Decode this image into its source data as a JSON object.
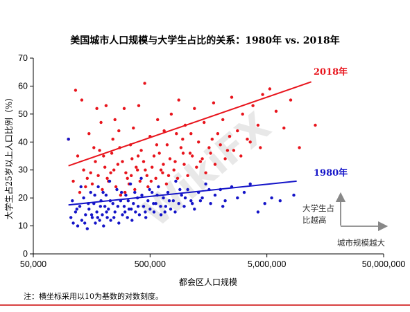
{
  "chart_data": {
    "type": "scatter",
    "title": "美国城市人口规模与大学生占比的关系：1980年 vs. 2018年",
    "xlabel": "都会区人口规模",
    "ylabel": "大学生占25岁以上人口比例（%）",
    "x_scale": "log",
    "xlim": [
      50000,
      50000000
    ],
    "ylim": [
      0,
      70
    ],
    "x_ticks": [
      50000,
      500000,
      5000000,
      50000000
    ],
    "x_tick_labels": [
      "50,000",
      "500,000",
      "5,000,000",
      "50,000,000"
    ],
    "y_ticks": [
      0,
      10,
      20,
      30,
      40,
      50,
      60,
      70
    ],
    "y_tick_labels": [
      "0",
      "10",
      "20",
      "30",
      "40",
      "50",
      "60",
      "70"
    ],
    "grid": false,
    "series": [
      {
        "name": "2018年",
        "color": "#e8141c",
        "trend": [
          [
            100000,
            31.5
          ],
          [
            12000000,
            61.5
          ]
        ],
        "points": [
          [
            100000,
            41
          ],
          [
            115000,
            58.5
          ],
          [
            130000,
            55
          ],
          [
            140000,
            24
          ],
          [
            150000,
            43
          ],
          [
            165000,
            38
          ],
          [
            175000,
            52
          ],
          [
            190000,
            47
          ],
          [
            200000,
            35
          ],
          [
            210000,
            53
          ],
          [
            230000,
            29
          ],
          [
            240000,
            41
          ],
          [
            250000,
            48
          ],
          [
            270000,
            44
          ],
          [
            290000,
            33
          ],
          [
            300000,
            52
          ],
          [
            320000,
            27
          ],
          [
            340000,
            39
          ],
          [
            360000,
            45
          ],
          [
            380000,
            31
          ],
          [
            400000,
            53
          ],
          [
            420000,
            37
          ],
          [
            450000,
            61
          ],
          [
            470000,
            28
          ],
          [
            500000,
            42
          ],
          [
            540000,
            35
          ],
          [
            580000,
            48
          ],
          [
            620000,
            30
          ],
          [
            660000,
            44
          ],
          [
            700000,
            39
          ],
          [
            760000,
            50
          ],
          [
            820000,
            33
          ],
          [
            880000,
            55
          ],
          [
            950000,
            41
          ],
          [
            1000000,
            46
          ],
          [
            1100000,
            36
          ],
          [
            1200000,
            52
          ],
          [
            1300000,
            40
          ],
          [
            1450000,
            47
          ],
          [
            1600000,
            38
          ],
          [
            1750000,
            54
          ],
          [
            1900000,
            43
          ],
          [
            2100000,
            48
          ],
          [
            2300000,
            37
          ],
          [
            2500000,
            56
          ],
          [
            2800000,
            44
          ],
          [
            3100000,
            50
          ],
          [
            3400000,
            41
          ],
          [
            3800000,
            53
          ],
          [
            4200000,
            46
          ],
          [
            4600000,
            57
          ],
          [
            5300000,
            59
          ],
          [
            6000000,
            51
          ],
          [
            7000000,
            45
          ],
          [
            8000000,
            55
          ],
          [
            9500000,
            38
          ],
          [
            13000000,
            46
          ],
          [
            110000,
            26
          ],
          [
            125000,
            22
          ],
          [
            135000,
            30
          ],
          [
            145000,
            27
          ],
          [
            160000,
            25
          ],
          [
            170000,
            33
          ],
          [
            180000,
            28
          ],
          [
            195000,
            23
          ],
          [
            205000,
            31
          ],
          [
            220000,
            26
          ],
          [
            235000,
            36
          ],
          [
            255000,
            24
          ],
          [
            265000,
            32
          ],
          [
            280000,
            21
          ],
          [
            310000,
            29
          ],
          [
            330000,
            25
          ],
          [
            350000,
            34
          ],
          [
            370000,
            23
          ],
          [
            390000,
            30
          ],
          [
            410000,
            26
          ],
          [
            440000,
            33
          ],
          [
            480000,
            24
          ],
          [
            520000,
            31
          ],
          [
            560000,
            27
          ],
          [
            600000,
            36
          ],
          [
            640000,
            29
          ],
          [
            690000,
            25
          ],
          [
            740000,
            34
          ],
          [
            800000,
            30
          ],
          [
            860000,
            27
          ],
          [
            920000,
            38
          ],
          [
            980000,
            32
          ],
          [
            1050000,
            28
          ],
          [
            1150000,
            35
          ],
          [
            1250000,
            31
          ],
          [
            1350000,
            33
          ],
          [
            1500000,
            29
          ],
          [
            1650000,
            36
          ],
          [
            1800000,
            32
          ],
          [
            2000000,
            39
          ],
          [
            2200000,
            34
          ],
          [
            2600000,
            37
          ],
          [
            3000000,
            35
          ],
          [
            3600000,
            40
          ],
          [
            4400000,
            38
          ],
          [
            120000,
            35
          ],
          [
            155000,
            29
          ],
          [
            185000,
            37
          ],
          [
            215000,
            27
          ],
          [
            245000,
            30
          ],
          [
            275000,
            38
          ],
          [
            305000,
            22
          ],
          [
            345000,
            28
          ],
          [
            395000,
            35
          ],
          [
            455000,
            30
          ],
          [
            510000,
            26
          ],
          [
            570000,
            39
          ],
          [
            650000,
            32
          ],
          [
            720000,
            28
          ],
          [
            840000,
            43
          ],
          [
            960000,
            36
          ],
          [
            1120000,
            43
          ],
          [
            1400000,
            34
          ],
          [
            1700000,
            41
          ],
          [
            2400000,
            42
          ]
        ]
      },
      {
        "name": "1980年",
        "color": "#1414c8",
        "trend": [
          [
            100000,
            17.5
          ],
          [
            9000000,
            26
          ]
        ],
        "points": [
          [
            100000,
            41
          ],
          [
            105000,
            13
          ],
          [
            110000,
            11
          ],
          [
            115000,
            15
          ],
          [
            120000,
            10
          ],
          [
            125000,
            17
          ],
          [
            130000,
            12
          ],
          [
            135000,
            20
          ],
          [
            140000,
            14
          ],
          [
            145000,
            9
          ],
          [
            150000,
            16
          ],
          [
            155000,
            22
          ],
          [
            160000,
            13
          ],
          [
            165000,
            18
          ],
          [
            170000,
            11
          ],
          [
            175000,
            15
          ],
          [
            180000,
            24
          ],
          [
            185000,
            12
          ],
          [
            190000,
            19
          ],
          [
            195000,
            14
          ],
          [
            200000,
            10
          ],
          [
            205000,
            17
          ],
          [
            210000,
            21
          ],
          [
            215000,
            13
          ],
          [
            220000,
            16
          ],
          [
            225000,
            26
          ],
          [
            230000,
            12
          ],
          [
            240000,
            18
          ],
          [
            250000,
            15
          ],
          [
            260000,
            23
          ],
          [
            270000,
            11
          ],
          [
            280000,
            19
          ],
          [
            290000,
            14
          ],
          [
            300000,
            17
          ],
          [
            310000,
            21
          ],
          [
            320000,
            13
          ],
          [
            330000,
            16
          ],
          [
            340000,
            25
          ],
          [
            350000,
            12
          ],
          [
            360000,
            18
          ],
          [
            375000,
            15
          ],
          [
            390000,
            20
          ],
          [
            405000,
            14
          ],
          [
            420000,
            27
          ],
          [
            440000,
            17
          ],
          [
            460000,
            13
          ],
          [
            480000,
            19
          ],
          [
            500000,
            16
          ],
          [
            520000,
            22
          ],
          [
            540000,
            15
          ],
          [
            560000,
            18
          ],
          [
            590000,
            24
          ],
          [
            620000,
            14
          ],
          [
            650000,
            20
          ],
          [
            680000,
            17
          ],
          [
            710000,
            22
          ],
          [
            750000,
            16
          ],
          [
            790000,
            19
          ],
          [
            830000,
            26
          ],
          [
            880000,
            18
          ],
          [
            930000,
            21
          ],
          [
            980000,
            17
          ],
          [
            1050000,
            23
          ],
          [
            1120000,
            19
          ],
          [
            1200000,
            16
          ],
          [
            1300000,
            22
          ],
          [
            1400000,
            20
          ],
          [
            1500000,
            25
          ],
          [
            1650000,
            18
          ],
          [
            1800000,
            21
          ],
          [
            2000000,
            23
          ],
          [
            2200000,
            19
          ],
          [
            2500000,
            24
          ],
          [
            2800000,
            20
          ],
          [
            3200000,
            22
          ],
          [
            3600000,
            25
          ],
          [
            4200000,
            15
          ],
          [
            4800000,
            18
          ],
          [
            5500000,
            20
          ],
          [
            6500000,
            19
          ],
          [
            8500000,
            21
          ],
          [
            108000,
            19
          ],
          [
            118000,
            16
          ],
          [
            128000,
            24
          ],
          [
            138000,
            11
          ],
          [
            148000,
            18
          ],
          [
            158000,
            14
          ],
          [
            168000,
            21
          ],
          [
            178000,
            13
          ],
          [
            188000,
            17
          ],
          [
            198000,
            22
          ],
          [
            212000,
            15
          ],
          [
            228000,
            19
          ],
          [
            245000,
            13
          ],
          [
            265000,
            17
          ],
          [
            285000,
            22
          ],
          [
            305000,
            15
          ],
          [
            325000,
            19
          ],
          [
            345000,
            16
          ],
          [
            370000,
            22
          ],
          [
            395000,
            17
          ],
          [
            425000,
            21
          ],
          [
            455000,
            15
          ],
          [
            495000,
            23
          ],
          [
            535000,
            18
          ],
          [
            575000,
            21
          ],
          [
            615000,
            17
          ],
          [
            670000,
            15
          ],
          [
            730000,
            19
          ],
          [
            820000,
            15
          ],
          [
            900000,
            23
          ],
          [
            1000000,
            20
          ],
          [
            1150000,
            18
          ],
          [
            1350000,
            19
          ],
          [
            1600000,
            23
          ],
          [
            2100000,
            17
          ]
        ]
      }
    ],
    "annotations": {
      "watermark": "WikiFX",
      "hint_lines": [
        "大学生占",
        "比越高"
      ],
      "arrow_label": "城市规模越大",
      "footnote": "注：横坐标采用以10为基数的对数刻度。"
    }
  }
}
